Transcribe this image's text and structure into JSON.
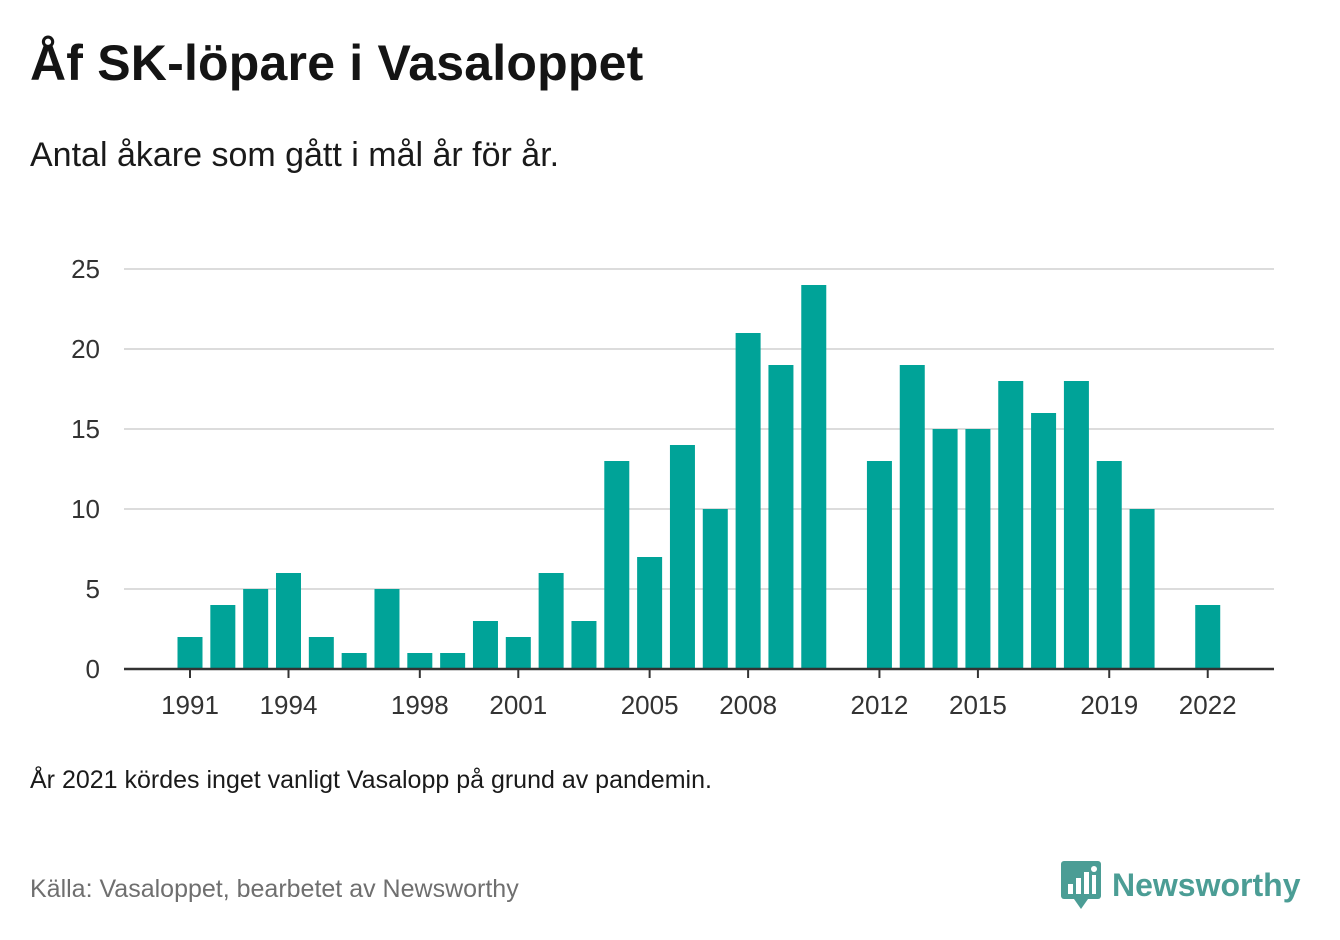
{
  "title": "Åf SK-löpare i Vasaloppet",
  "subtitle": "Antal åkare som gått i mål år för år.",
  "note": "År 2021 kördes inget vanligt Vasalopp på grund av pandemin.",
  "source": "Källa: Vasaloppet, bearbetet av Newsworthy",
  "brand": {
    "name": "Newsworthy",
    "icon": "newsworthy-logo-icon",
    "color": "#4b9d95"
  },
  "chart_data": {
    "type": "bar",
    "title": "Åf SK-löpare i Vasaloppet",
    "subtitle": "Antal åkare som gått i mål år för år.",
    "xlabel": "",
    "ylabel": "",
    "ylim": [
      0,
      25
    ],
    "yticks": [
      0,
      5,
      10,
      15,
      20,
      25
    ],
    "xticks": [
      1991,
      1994,
      1998,
      2001,
      2005,
      2008,
      2012,
      2015,
      2019,
      2022
    ],
    "grid": true,
    "legend": "none",
    "color": "#00a398",
    "categories": [
      1991,
      1992,
      1993,
      1994,
      1995,
      1996,
      1997,
      1998,
      1999,
      2000,
      2001,
      2002,
      2003,
      2004,
      2005,
      2006,
      2007,
      2008,
      2009,
      2010,
      2011,
      2012,
      2013,
      2014,
      2015,
      2016,
      2017,
      2018,
      2019,
      2020,
      2021,
      2022
    ],
    "values": [
      2,
      4,
      5,
      6,
      2,
      1,
      5,
      1,
      1,
      3,
      2,
      6,
      3,
      13,
      7,
      14,
      10,
      21,
      19,
      24,
      null,
      13,
      19,
      15,
      15,
      18,
      16,
      18,
      13,
      10,
      null,
      4
    ]
  }
}
